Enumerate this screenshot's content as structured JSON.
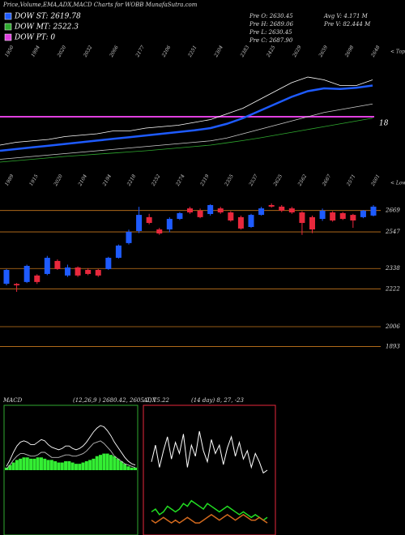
{
  "header": {
    "title": "Price,Volume,EMA,ADX,MACD Charts for WOBB MunafaSutra.com",
    "legend": [
      {
        "label": "DOW ST: 2619.78",
        "color": "#1e5bff"
      },
      {
        "label": "DOW MT: 2522.3",
        "color": "#2faa2f"
      },
      {
        "label": "DOW PT: 0",
        "color": "#e040e0"
      }
    ],
    "stats": [
      "Pre O: 2630.45",
      "Pre H: 2689.06",
      "Pre L: 2630.45",
      "Pre C: 2687.90",
      "Avg V: 4.171 M",
      "Pre V: 82.444 M"
    ],
    "tops_label": "< Tops",
    "lows_label": "< Lows",
    "tops": [
      "1950",
      "1994",
      "2020",
      "2032",
      "2066",
      "2177",
      "2206",
      "2251",
      "2304",
      "2383",
      "2425",
      "2629",
      "2659",
      "2698",
      "2648"
    ],
    "lows": [
      "1989",
      "1915",
      "2020",
      "2104",
      "2194",
      "2218",
      "2252",
      "2274",
      "2319",
      "2355",
      "2537",
      "2625",
      "2562",
      "2667",
      "2571",
      "2601"
    ]
  },
  "chart_data": [
    {
      "type": "candlestick",
      "up_color": "#1e5bff",
      "down_color": "#e8283c",
      "line_color": "#c8781e",
      "ylim": [
        1650,
        2760
      ],
      "yticks": [
        2669,
        2547,
        2338,
        2222,
        2006,
        1893
      ],
      "open": [
        2251,
        2250,
        2261,
        2298,
        2307,
        2381,
        2298,
        2344,
        2330,
        2330,
        2335,
        2399,
        2483,
        2552,
        2631,
        2561,
        2561,
        2621,
        2681,
        2668,
        2649,
        2681,
        2658,
        2631,
        2575,
        2644,
        2700,
        2691,
        2681,
        2658,
        2631,
        2621,
        2658,
        2654,
        2644,
        2631,
        2640
      ],
      "high": [
        2335,
        2255,
        2360,
        2305,
        2410,
        2390,
        2360,
        2350,
        2340,
        2335,
        2405,
        2475,
        2560,
        2690,
        2650,
        2570,
        2630,
        2660,
        2690,
        2680,
        2705,
        2690,
        2665,
        2640,
        2650,
        2690,
        2710,
        2700,
        2690,
        2665,
        2640,
        2680,
        2665,
        2660,
        2650,
        2672,
        2700
      ],
      "low": [
        2242,
        2205,
        2255,
        2250,
        2300,
        2330,
        2290,
        2290,
        2300,
        2290,
        2330,
        2395,
        2475,
        2540,
        2590,
        2530,
        2545,
        2615,
        2650,
        2625,
        2640,
        2650,
        2605,
        2560,
        2570,
        2640,
        2685,
        2660,
        2650,
        2530,
        2540,
        2610,
        2605,
        2615,
        2570,
        2625,
        2635
      ],
      "close": [
        2330,
        2242,
        2353,
        2261,
        2399,
        2335,
        2344,
        2298,
        2307,
        2298,
        2399,
        2469,
        2547,
        2644,
        2598,
        2538,
        2621,
        2654,
        2658,
        2631,
        2700,
        2658,
        2612,
        2566,
        2644,
        2681,
        2691,
        2668,
        2658,
        2598,
        2561,
        2668,
        2612,
        2621,
        2612,
        2668,
        2691
      ]
    },
    {
      "type": "line",
      "level": 18,
      "level_label": "18",
      "level_color": "#e040e0",
      "series": [
        {
          "color": "#ffffff",
          "values": [
            8,
            9,
            9.5,
            10,
            11,
            11.5,
            12,
            13,
            13,
            14,
            14.5,
            15,
            16,
            17,
            19,
            21,
            24,
            27,
            30,
            32,
            31,
            29,
            29,
            31
          ]
        },
        {
          "color": "#1e5bff",
          "values": [
            6,
            6.6,
            7.2,
            7.8,
            8.4,
            9,
            9.6,
            10.2,
            10.8,
            11.4,
            12,
            12.6,
            13.2,
            14,
            15.5,
            17.5,
            20,
            22.5,
            25,
            27,
            28,
            27.8,
            28.2,
            29
          ]
        },
        {
          "color": "#cccccc",
          "values": [
            3,
            3.5,
            4,
            4.5,
            5,
            5.5,
            6,
            6.5,
            7,
            7.5,
            8,
            8.5,
            9,
            9.5,
            10.5,
            12,
            13.5,
            15,
            16.5,
            18,
            19.5,
            20.5,
            21.5,
            22.5
          ]
        },
        {
          "color": "#2faa2f",
          "values": [
            2,
            2.5,
            3,
            3.5,
            4,
            4.4,
            4.8,
            5.2,
            5.6,
            6,
            6.5,
            7,
            7.5,
            8,
            8.8,
            9.6,
            10.5,
            11.5,
            12.5,
            13.5,
            14.5,
            15.5,
            16.5,
            17.5
          ]
        }
      ]
    },
    {
      "type": "macd",
      "title": "MACD",
      "subtitle": "(12,26,9 ) 2680.42, 2605.2, 75.22",
      "border": "#2faa2f",
      "hist_color": "#33ee33",
      "histogram": [
        0.2,
        0.4,
        0.6,
        0.8,
        0.9,
        1.0,
        1.0,
        0.9,
        0.9,
        1.0,
        1.0,
        0.9,
        0.8,
        0.8,
        0.7,
        0.6,
        0.6,
        0.7,
        0.7,
        0.6,
        0.5,
        0.5,
        0.6,
        0.7,
        0.8,
        0.9,
        1.1,
        1.2,
        1.3,
        1.3,
        1.2,
        1.1,
        0.9,
        0.7,
        0.5,
        0.3,
        0.2,
        0.2
      ],
      "series": [
        {
          "color": "#ffffff",
          "values": [
            0.3,
            0.8,
            1.4,
            1.9,
            2.2,
            2.3,
            2.2,
            2.0,
            2.0,
            2.2,
            2.4,
            2.3,
            2.0,
            1.8,
            1.7,
            1.6,
            1.7,
            1.9,
            1.9,
            1.7,
            1.6,
            1.7,
            1.9,
            2.2,
            2.6,
            3.0,
            3.3,
            3.5,
            3.4,
            3.1,
            2.7,
            2.2,
            1.8,
            1.4,
            1.0,
            0.7,
            0.5,
            0.4
          ]
        },
        {
          "color": "#bbbbbb",
          "values": [
            0.1,
            0.4,
            0.8,
            1.1,
            1.3,
            1.3,
            1.2,
            1.1,
            1.1,
            1.2,
            1.4,
            1.4,
            1.2,
            1.0,
            1.0,
            1.0,
            1.1,
            1.2,
            1.2,
            1.1,
            1.1,
            1.2,
            1.3,
            1.5,
            1.8,
            2.1,
            2.2,
            2.3,
            2.1,
            1.8,
            1.5,
            1.1,
            0.9,
            0.7,
            0.5,
            0.4,
            0.3,
            0.2
          ]
        }
      ]
    },
    {
      "type": "adx",
      "title": "ADX",
      "subtitle": "(14 day) 8, 27, -23",
      "border": "#e8283c",
      "series": [
        {
          "color": "#ffffff",
          "values": [
            24,
            30,
            22,
            28,
            33,
            25,
            31,
            27,
            34,
            22,
            30,
            26,
            35,
            28,
            24,
            32,
            27,
            30,
            23,
            29,
            33,
            26,
            31,
            25,
            28,
            22,
            27,
            24,
            20,
            21
          ]
        },
        {
          "color": "#22dd22",
          "values": [
            6,
            7,
            5,
            6,
            8,
            7,
            6,
            7,
            9,
            8,
            10,
            9,
            8,
            7,
            9,
            8,
            7,
            6,
            7,
            8,
            7,
            6,
            5,
            6,
            5,
            4,
            5,
            4,
            3,
            4
          ]
        },
        {
          "color": "#d2691e",
          "values": [
            3,
            2,
            3,
            4,
            3,
            2,
            3,
            2,
            3,
            4,
            3,
            2,
            2,
            3,
            4,
            5,
            4,
            3,
            4,
            5,
            4,
            3,
            4,
            5,
            4,
            3,
            3,
            4,
            3,
            2
          ]
        }
      ]
    }
  ]
}
